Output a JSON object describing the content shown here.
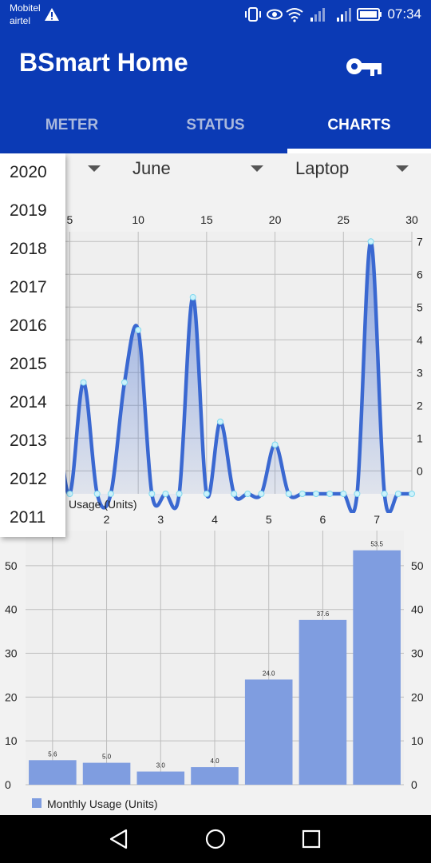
{
  "status_bar": {
    "carrier_1": "Mobitel",
    "carrier_2": "airtel",
    "time": "07:34",
    "icons": [
      "warning-icon",
      "vibrate-icon",
      "eye-icon",
      "wifi-icon",
      "signal-icon",
      "signal-icon",
      "battery-icon"
    ]
  },
  "app_bar": {
    "title": "BSmart Home",
    "action_icon": "key-icon"
  },
  "tabs": [
    {
      "label": "METER"
    },
    {
      "label": "STATUS"
    },
    {
      "label": "CHARTS",
      "active": true
    }
  ],
  "filters": {
    "month": "June",
    "device": "Laptop"
  },
  "year_options": [
    "2020",
    "2019",
    "2018",
    "2017",
    "2016",
    "2015",
    "2014",
    "2013",
    "2012",
    "2011"
  ],
  "colors": {
    "primary": "#0b3ab5",
    "line": "#3a68d1",
    "bar": "#7f9de0"
  },
  "chart_data": [
    {
      "type": "area",
      "legend": "Usage (Units)",
      "x_ticks": [
        "5",
        "10",
        "15",
        "20",
        "25",
        "30"
      ],
      "y_ticks": [
        "0",
        "1",
        "2",
        "3",
        "4",
        "5",
        "6",
        "7"
      ],
      "xlim": [
        2,
        30
      ],
      "ylim": [
        -0.7,
        7.3
      ],
      "x": [
        2,
        3,
        4,
        5,
        6,
        7,
        8,
        9,
        10,
        11,
        12,
        13,
        14,
        15,
        16,
        17,
        18,
        19,
        20,
        21,
        22,
        23,
        24,
        25,
        26,
        27,
        28,
        29,
        30
      ],
      "y": [
        -0.7,
        2.0,
        1.5,
        -0.7,
        2.7,
        -0.7,
        -0.7,
        2.7,
        4.3,
        -0.7,
        -0.7,
        -0.7,
        5.3,
        -0.7,
        1.5,
        -0.7,
        -0.7,
        -0.7,
        0.8,
        -0.7,
        -0.7,
        -0.7,
        -0.7,
        -0.7,
        -0.7,
        7.0,
        -0.7,
        -0.7,
        -0.7
      ]
    },
    {
      "type": "bar",
      "legend": "Monthly Usage (Units)",
      "categories": [
        "1",
        "2",
        "3",
        "4",
        "5",
        "6",
        "7"
      ],
      "x_ticks": [
        "2",
        "3",
        "4",
        "5",
        "6",
        "7"
      ],
      "y_ticks": [
        "0",
        "10",
        "20",
        "30",
        "40",
        "50"
      ],
      "values": [
        5.6,
        5.0,
        3.0,
        4.0,
        24.0,
        37.6,
        53.5
      ],
      "value_labels": [
        "5.6",
        "5.0",
        "3.0",
        "4.0",
        "24.0",
        "37.6",
        "53.5"
      ],
      "ylim": [
        0,
        58
      ]
    }
  ]
}
